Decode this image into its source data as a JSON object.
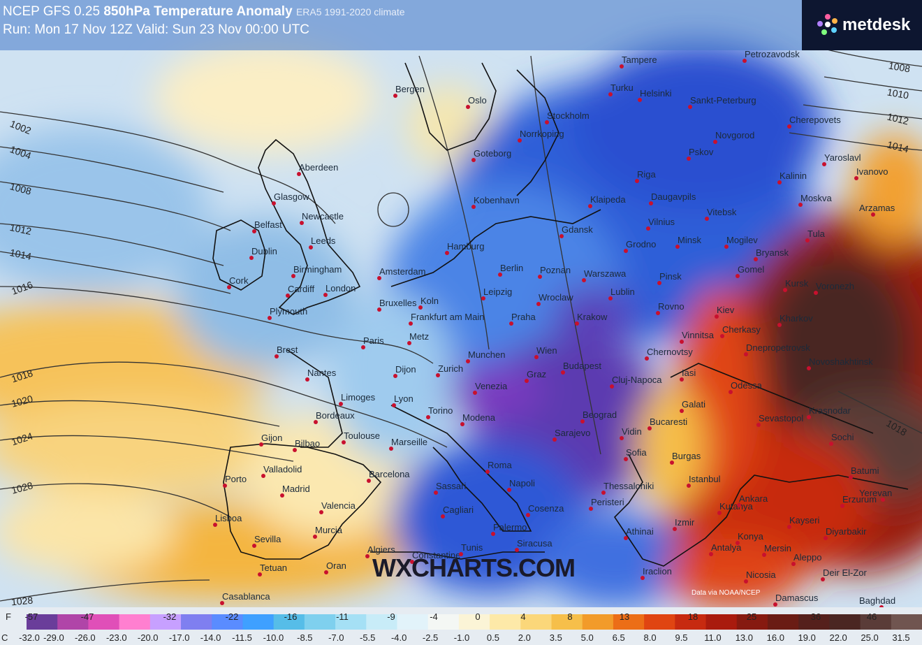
{
  "header": {
    "model": "NCEP GFS 0.25",
    "product": "850hPa Temperature Anomaly",
    "climate": "ERA5 1991-2020 climate",
    "run_line": "Run: Mon 17 Nov 12Z Valid: Sun 23 Nov 00:00 UTC"
  },
  "brand": {
    "name": "metdesk"
  },
  "watermark": "WXCHARTS.COM",
  "credit": "Data via NOAA/NCEP",
  "isobars": [
    "1002",
    "1004",
    "1008",
    "1012",
    "1014",
    "1016",
    "1018",
    "1020",
    "1024",
    "1028",
    "1028",
    "1008",
    "1010",
    "1012",
    "1014",
    "1018"
  ],
  "cities": [
    {
      "name": "Aberdeen",
      "id": "aberdeen"
    },
    {
      "name": "Glasgow",
      "id": "glasgow"
    },
    {
      "name": "Newcastle",
      "id": "newcastle"
    },
    {
      "name": "Belfast",
      "id": "belfast"
    },
    {
      "name": "Dublin",
      "id": "dublin"
    },
    {
      "name": "Leeds",
      "id": "leeds"
    },
    {
      "name": "Birmingham",
      "id": "birmingham"
    },
    {
      "name": "Cork",
      "id": "cork"
    },
    {
      "name": "Cardiff",
      "id": "cardiff"
    },
    {
      "name": "London",
      "id": "london"
    },
    {
      "name": "Plymouth",
      "id": "plymouth"
    },
    {
      "name": "Brest",
      "id": "brest"
    },
    {
      "name": "Nantes",
      "id": "nantes"
    },
    {
      "name": "Paris",
      "id": "paris"
    },
    {
      "name": "Limoges",
      "id": "limoges"
    },
    {
      "name": "Bordeaux",
      "id": "bordeaux"
    },
    {
      "name": "Toulouse",
      "id": "toulouse"
    },
    {
      "name": "Dijon",
      "id": "dijon"
    },
    {
      "name": "Lyon",
      "id": "lyon"
    },
    {
      "name": "Marseille",
      "id": "marseille"
    },
    {
      "name": "Gijon",
      "id": "gijon"
    },
    {
      "name": "Bilbao",
      "id": "bilbao"
    },
    {
      "name": "Valladolid",
      "id": "valladolid"
    },
    {
      "name": "Porto",
      "id": "porto"
    },
    {
      "name": "Madrid",
      "id": "madrid"
    },
    {
      "name": "Lisboa",
      "id": "lisboa"
    },
    {
      "name": "Valencia",
      "id": "valencia"
    },
    {
      "name": "Barcelona",
      "id": "barcelona"
    },
    {
      "name": "Sevilla",
      "id": "sevilla"
    },
    {
      "name": "Murcia",
      "id": "murcia"
    },
    {
      "name": "Tetuan",
      "id": "tetuan"
    },
    {
      "name": "Oran",
      "id": "oran"
    },
    {
      "name": "Casablanca",
      "id": "casablanca"
    },
    {
      "name": "Algiers",
      "id": "algiers"
    },
    {
      "name": "Constantine",
      "id": "constantine"
    },
    {
      "name": "Tunis",
      "id": "tunis"
    },
    {
      "name": "Amsterdam",
      "id": "amsterdam"
    },
    {
      "name": "Bruxelles",
      "id": "bruxelles"
    },
    {
      "name": "Koln",
      "id": "koln"
    },
    {
      "name": "Frankfurt am Main",
      "id": "frankfurt"
    },
    {
      "name": "Metz",
      "id": "metz"
    },
    {
      "name": "Zurich",
      "id": "zurich"
    },
    {
      "name": "Munchen",
      "id": "munchen"
    },
    {
      "name": "Torino",
      "id": "torino"
    },
    {
      "name": "Modena",
      "id": "modena"
    },
    {
      "name": "Roma",
      "id": "roma"
    },
    {
      "name": "Napoli",
      "id": "napoli"
    },
    {
      "name": "Sassari",
      "id": "sassari"
    },
    {
      "name": "Cagliari",
      "id": "cagliari"
    },
    {
      "name": "Palermo",
      "id": "palermo"
    },
    {
      "name": "Siracusa",
      "id": "siracusa"
    },
    {
      "name": "Cosenza",
      "id": "cosenza"
    },
    {
      "name": "Bergen",
      "id": "bergen"
    },
    {
      "name": "Oslo",
      "id": "oslo"
    },
    {
      "name": "Goteborg",
      "id": "goteborg"
    },
    {
      "name": "Kobenhavn",
      "id": "kobenhavn"
    },
    {
      "name": "Hamburg",
      "id": "hamburg"
    },
    {
      "name": "Berlin",
      "id": "berlin"
    },
    {
      "name": "Leipzig",
      "id": "leipzig"
    },
    {
      "name": "Praha",
      "id": "praha"
    },
    {
      "name": "Wien",
      "id": "wien"
    },
    {
      "name": "Graz",
      "id": "graz"
    },
    {
      "name": "Budapest",
      "id": "budapest"
    },
    {
      "name": "Poznan",
      "id": "poznan"
    },
    {
      "name": "Wroclaw",
      "id": "wroclaw"
    },
    {
      "name": "Warszawa",
      "id": "warszawa"
    },
    {
      "name": "Krakow",
      "id": "krakow"
    },
    {
      "name": "Gdansk",
      "id": "gdansk"
    },
    {
      "name": "Stockholm",
      "id": "stockholm"
    },
    {
      "name": "Norrkoping",
      "id": "norrkoping"
    },
    {
      "name": "Tampere",
      "id": "tampere"
    },
    {
      "name": "Turku",
      "id": "turku"
    },
    {
      "name": "Helsinki",
      "id": "helsinki"
    },
    {
      "name": "Sankt-Peterburg",
      "id": "spb"
    },
    {
      "name": "Petrozavodsk",
      "id": "petrozavodsk"
    },
    {
      "name": "Cherepovets",
      "id": "cherepovets"
    },
    {
      "name": "Novgorod",
      "id": "novgorod"
    },
    {
      "name": "Pskov",
      "id": "pskov"
    },
    {
      "name": "Riga",
      "id": "riga"
    },
    {
      "name": "Daugavpils",
      "id": "daugavpils"
    },
    {
      "name": "Klaipeda",
      "id": "klaipeda"
    },
    {
      "name": "Vilnius",
      "id": "vilnius"
    },
    {
      "name": "Grodno",
      "id": "grodno"
    },
    {
      "name": "Minsk",
      "id": "minsk"
    },
    {
      "name": "Vitebsk",
      "id": "vitebsk"
    },
    {
      "name": "Mogilev",
      "id": "mogilev"
    },
    {
      "name": "Gomel",
      "id": "gomel"
    },
    {
      "name": "Pinsk",
      "id": "pinsk"
    },
    {
      "name": "Lublin",
      "id": "lublin"
    },
    {
      "name": "Rovno",
      "id": "rovno"
    },
    {
      "name": "Kiev",
      "id": "kiev"
    },
    {
      "name": "Yaroslavl",
      "id": "yaroslavl"
    },
    {
      "name": "Ivanovo",
      "id": "ivanovo"
    },
    {
      "name": "Kalinin",
      "id": "kalinin"
    },
    {
      "name": "Moskva",
      "id": "moskva"
    },
    {
      "name": "Tula",
      "id": "tula"
    },
    {
      "name": "Bryansk",
      "id": "bryansk"
    },
    {
      "name": "Arzamas",
      "id": "arzamas"
    },
    {
      "name": "Kursk",
      "id": "kursk"
    },
    {
      "name": "Voronezh",
      "id": "voronezh"
    },
    {
      "name": "Kharkov",
      "id": "kharkov"
    },
    {
      "name": "Cherkasy",
      "id": "cherkasy"
    },
    {
      "name": "Vinnitsa",
      "id": "vinnitsa"
    },
    {
      "name": "Dnepropetrovsk",
      "id": "dnepropetrovsk"
    },
    {
      "name": "Novoshakhtinsk",
      "id": "novoshakhtinsk"
    },
    {
      "name": "Chernovtsy",
      "id": "chernovtsy"
    },
    {
      "name": "Iasi",
      "id": "iasi"
    },
    {
      "name": "Cluj-Napoca",
      "id": "cluj"
    },
    {
      "name": "Odessa",
      "id": "odessa"
    },
    {
      "name": "Galati",
      "id": "galati"
    },
    {
      "name": "Sevastopol",
      "id": "sevastopol"
    },
    {
      "name": "Krasnodar",
      "id": "krasnodar"
    },
    {
      "name": "Sochi",
      "id": "sochi"
    },
    {
      "name": "Batumi",
      "id": "batumi"
    },
    {
      "name": "Yerevan",
      "id": "yerevan"
    },
    {
      "name": "Erzurum",
      "id": "erzurum"
    },
    {
      "name": "Bucaresti",
      "id": "bucaresti"
    },
    {
      "name": "Beograd",
      "id": "beograd"
    },
    {
      "name": "Vidin",
      "id": "vidin"
    },
    {
      "name": "Sarajevo",
      "id": "sarajevo"
    },
    {
      "name": "Sofia",
      "id": "sofia"
    },
    {
      "name": "Burgas",
      "id": "burgas"
    },
    {
      "name": "Istanbul",
      "id": "istanbul"
    },
    {
      "name": "Thessaloniki",
      "id": "thessaloniki"
    },
    {
      "name": "Peristeri",
      "id": "peristeri"
    },
    {
      "name": "Athinai",
      "id": "athinai"
    },
    {
      "name": "Izmir",
      "id": "izmir"
    },
    {
      "name": "Kutahya",
      "id": "kutahya"
    },
    {
      "name": "Ankara",
      "id": "ankara"
    },
    {
      "name": "Kayseri",
      "id": "kayseri"
    },
    {
      "name": "Diyarbakir",
      "id": "diyarbakir"
    },
    {
      "name": "Konya",
      "id": "konya"
    },
    {
      "name": "Antalya",
      "id": "antalya"
    },
    {
      "name": "Mersin",
      "id": "mersin"
    },
    {
      "name": "Aleppo",
      "id": "aleppo"
    },
    {
      "name": "Nicosia",
      "id": "nicosia"
    },
    {
      "name": "Deir El-Zor",
      "id": "deir"
    },
    {
      "name": "Damascus",
      "id": "damascus"
    },
    {
      "name": "Baghdad",
      "id": "baghdad"
    },
    {
      "name": "Iraclion",
      "id": "iraclion"
    },
    {
      "name": "Venezia",
      "id": "venezia"
    }
  ],
  "legend": {
    "f_unit": "F",
    "c_unit": "C",
    "f_ticks": [
      "-57",
      "-47",
      "-32",
      "-22",
      "-16",
      "-11",
      "-9",
      "-4",
      "0",
      "4",
      "8",
      "13",
      "18",
      "25",
      "36",
      "46"
    ],
    "c_ticks": [
      "-32.0",
      "-29.0",
      "-26.0",
      "-23.0",
      "-20.0",
      "-17.0",
      "-14.0",
      "-11.5",
      "-10.0",
      "-8.5",
      "-7.0",
      "-5.5",
      "-4.0",
      "-2.5",
      "-1.0",
      "0.5",
      "2.0",
      "3.5",
      "5.0",
      "6.5",
      "8.0",
      "9.5",
      "11.0",
      "13.0",
      "16.0",
      "19.0",
      "22.0",
      "25.0",
      "31.5"
    ],
    "colors": [
      "#6a3d9a",
      "#b045a8",
      "#e04fb8",
      "#ff7fd0",
      "#c7a0ff",
      "#7f7ff0",
      "#5a8cff",
      "#3fa0ff",
      "#56bde8",
      "#7fd0ee",
      "#a5e0f5",
      "#c8ecf8",
      "#e2f3fa",
      "#f4f7f4",
      "#fbf4d6",
      "#fde9a8",
      "#fbd77a",
      "#f6bf4a",
      "#f29b2a",
      "#ec6e17",
      "#e04512",
      "#c72a10",
      "#a91b0e",
      "#861a10",
      "#6a1c14",
      "#55201c",
      "#4a2622",
      "#5a3c38",
      "#705550"
    ]
  }
}
